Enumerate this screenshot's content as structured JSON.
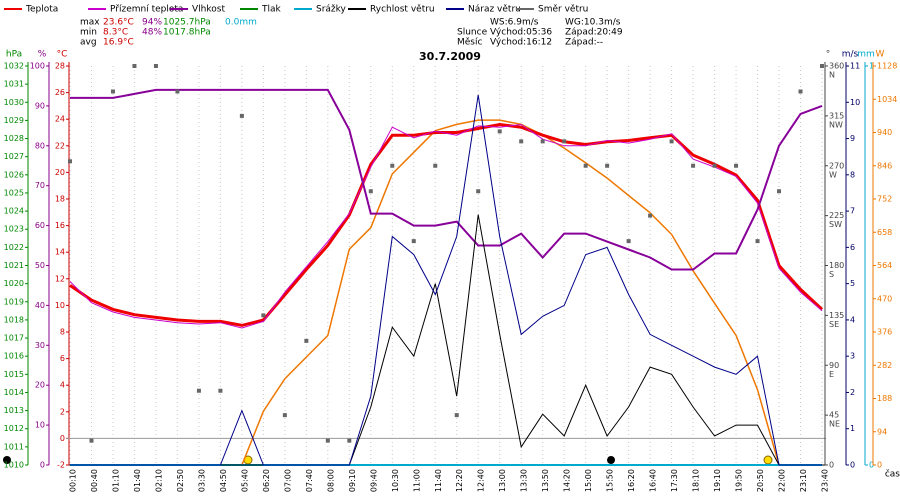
{
  "chart_data": {
    "type": "line",
    "title": "30.7.2009",
    "xlabel": "čas",
    "categories": [
      "00:10",
      "00:40",
      "01:10",
      "01:40",
      "02:10",
      "02:50",
      "03:30",
      "04:50",
      "05:40",
      "06:20",
      "07:00",
      "07:40",
      "08:00",
      "09:10",
      "09:40",
      "10:30",
      "11:00",
      "11:40",
      "12:20",
      "12:40",
      "13:00",
      "13:30",
      "13:50",
      "14:20",
      "15:00",
      "15:50",
      "16:20",
      "16:40",
      "17:30",
      "18:10",
      "19:10",
      "19:50",
      "20:50",
      "22:00",
      "23:10",
      "23:40"
    ],
    "ylabel": "°C",
    "ycolor": "#cc0000",
    "ylim": [
      -2,
      28
    ],
    "yticks": [
      -2,
      0,
      2,
      4,
      6,
      8,
      10,
      12,
      14,
      16,
      18,
      20,
      22,
      24,
      26,
      28
    ],
    "y2label": "hPa",
    "y2color": "#008800",
    "y2lim": [
      1010,
      1032
    ],
    "y2ticks": [
      1010,
      1011,
      1012,
      1013,
      1014,
      1015,
      1016,
      1017,
      1018,
      1019,
      1020,
      1021,
      1022,
      1023,
      1024,
      1025,
      1026,
      1027,
      1028,
      1029,
      1030,
      1031,
      1032
    ],
    "y3label": "%",
    "y3color": "#880088",
    "y3lim": [
      0,
      100
    ],
    "y3ticks": [
      0,
      10,
      20,
      30,
      40,
      50,
      60,
      70,
      80,
      90,
      100
    ],
    "y4label": "°",
    "y4color": "#444444",
    "y4lim": [
      0,
      360
    ],
    "y4ticks": [
      {
        "value": 0,
        "label": "0"
      },
      {
        "value": 45,
        "label": "45",
        "compass": "NE"
      },
      {
        "value": 90,
        "label": "90",
        "compass": "E"
      },
      {
        "value": 135,
        "label": "135",
        "compass": "SE"
      },
      {
        "value": 180,
        "label": "180",
        "compass": "S"
      },
      {
        "value": 225,
        "label": "225",
        "compass": "SW"
      },
      {
        "value": 270,
        "label": "270",
        "compass": "W"
      },
      {
        "value": 315,
        "label": "315",
        "compass": "NW"
      },
      {
        "value": 360,
        "label": "360",
        "compass": "N"
      }
    ],
    "y5label": "m/s",
    "y5color": "#000066",
    "y5lim": [
      0,
      11
    ],
    "y5ticks": [
      0,
      1,
      2,
      3,
      4,
      5,
      6,
      7,
      8,
      9,
      10,
      11
    ],
    "y6label": "mm",
    "y6color": "#00aacc",
    "y6lim": [
      0,
      1
    ],
    "y6ticks": [
      0,
      1
    ],
    "y7label": "W",
    "y7color": "#ee7700",
    "y7lim": [
      0,
      1128
    ],
    "y7ticks": [
      0,
      94,
      188,
      282,
      376,
      470,
      564,
      658,
      752,
      846,
      940,
      1034,
      1128
    ],
    "grid": true,
    "series": [
      {
        "name": "Teplota",
        "color": "#ee0000",
        "axis": "y",
        "width": 3,
        "values": [
          11.5,
          10.4,
          9.7,
          9.3,
          9.1,
          8.9,
          8.8,
          8.8,
          8.5,
          8.9,
          10.8,
          12.7,
          14.5,
          16.8,
          20.6,
          22.8,
          22.8,
          23.0,
          23.0,
          23.3,
          23.6,
          23.4,
          22.8,
          22.3,
          22.1,
          22.3,
          22.4,
          22.6,
          22.8,
          21.3,
          20.6,
          19.8,
          17.9,
          13.0,
          11.2,
          9.7
        ]
      },
      {
        "name": "Přízemní teplota",
        "color": "#cc00cc",
        "axis": "y",
        "width": 1,
        "values": [
          11.8,
          10.2,
          9.5,
          9.1,
          8.9,
          8.7,
          8.6,
          8.7,
          8.3,
          8.8,
          11.0,
          12.9,
          14.8,
          16.9,
          20.4,
          23.4,
          22.6,
          23.1,
          22.8,
          23.5,
          23.4,
          23.6,
          22.5,
          22.0,
          22.0,
          22.4,
          22.2,
          22.5,
          22.9,
          21.0,
          20.4,
          19.7,
          17.7,
          12.8,
          11.0,
          9.6
        ]
      },
      {
        "name": "Vlhkost",
        "color": "#880099",
        "axis": "y3",
        "width": 2,
        "values": [
          92,
          92,
          92,
          93,
          94,
          94,
          94,
          94,
          94,
          94,
          94,
          94,
          94,
          84,
          63,
          63,
          60,
          60,
          61,
          55,
          55,
          58,
          52,
          58,
          58,
          56,
          54,
          52,
          49,
          49,
          53,
          53,
          64,
          80,
          88,
          90
        ]
      },
      {
        "name": "Tlak",
        "color": "#008800",
        "axis": "y2",
        "width": 1,
        "values": [
          null,
          null,
          null,
          null,
          null,
          null,
          null,
          null,
          null,
          null,
          null,
          null,
          null,
          null,
          null,
          null,
          null,
          null,
          null,
          null,
          null,
          null,
          null,
          null,
          null,
          null,
          null,
          null,
          null,
          null,
          null,
          null,
          null,
          null,
          null,
          null
        ]
      },
      {
        "name": "Srážky",
        "color": "#00aacc",
        "axis": "y6",
        "width": 2,
        "values": [
          0,
          0,
          0,
          0,
          0,
          0,
          0,
          0,
          0,
          0,
          0,
          0,
          0,
          0,
          0,
          0,
          0,
          0,
          0,
          0,
          0,
          0,
          0,
          0,
          0,
          0,
          0,
          0,
          0,
          0,
          0,
          0,
          0,
          0,
          0,
          0
        ]
      },
      {
        "name": "Rychlost větru",
        "color": "#000000",
        "axis": "y5",
        "width": 1,
        "values": [
          0,
          0,
          0,
          0,
          0,
          0,
          0,
          0,
          0,
          0,
          0,
          0,
          0,
          0,
          1.6,
          3.8,
          3,
          5,
          1.9,
          6.9,
          3.6,
          0.5,
          1.4,
          0.8,
          2.2,
          0.8,
          1.6,
          2.7,
          2.5,
          1.6,
          0.8,
          1.1,
          1.1,
          0,
          0,
          0
        ]
      },
      {
        "name": "Náraz větru",
        "color": "#000088",
        "axis": "y5",
        "width": 1,
        "values": [
          0,
          0,
          0,
          0,
          0,
          0,
          0,
          0,
          1.5,
          0,
          0,
          0,
          0,
          0,
          1.9,
          6.3,
          5.8,
          4.7,
          6.3,
          10.2,
          6.3,
          3.6,
          4.1,
          4.4,
          5.8,
          6.0,
          4.7,
          3.6,
          3.3,
          3.0,
          2.7,
          2.5,
          3.0,
          0,
          0,
          0
        ]
      },
      {
        "name": "Směr větru",
        "color": "#666666",
        "axis": "y4",
        "marker": "square",
        "values": [
          274,
          22,
          337,
          360,
          360,
          337,
          67,
          67,
          315,
          135,
          45,
          112,
          22,
          22,
          247,
          270,
          202,
          270,
          45,
          247,
          301,
          292,
          292,
          292,
          270,
          270,
          202,
          225,
          292,
          270,
          270,
          270,
          202,
          247,
          337,
          360
        ]
      }
    ],
    "solar": {
      "color": "#ee7700",
      "axis": "y7",
      "values": [
        0,
        0,
        0,
        0,
        0,
        0,
        0,
        0,
        0,
        152,
        244,
        305,
        366,
        610,
        671,
        823,
        884,
        945,
        963,
        975,
        975,
        963,
        933,
        896,
        854,
        811,
        762,
        713,
        652,
        549,
        457,
        366,
        213,
        0,
        0,
        0
      ]
    },
    "stats": [
      {
        "label": "max",
        "temp": "23.6°C",
        "humidity": "94%",
        "pressure": "1025.7hPa",
        "rain": "0.0mm"
      },
      {
        "label": "min",
        "temp": "8.3°C",
        "humidity": "48%",
        "pressure": "1017.8hPa"
      },
      {
        "label": "avg",
        "temp": "16.9°C"
      }
    ],
    "wind_stats": {
      "ws": "WS:6.9m/s",
      "wg": "WG:10.3m/s"
    },
    "sun": {
      "label": "Slunce",
      "rise": "Východ:05:36",
      "set": "Západ:20:49"
    },
    "moon": {
      "label": "Měsíc",
      "rise": "Východ:16:12",
      "set": "Západ:--"
    }
  }
}
